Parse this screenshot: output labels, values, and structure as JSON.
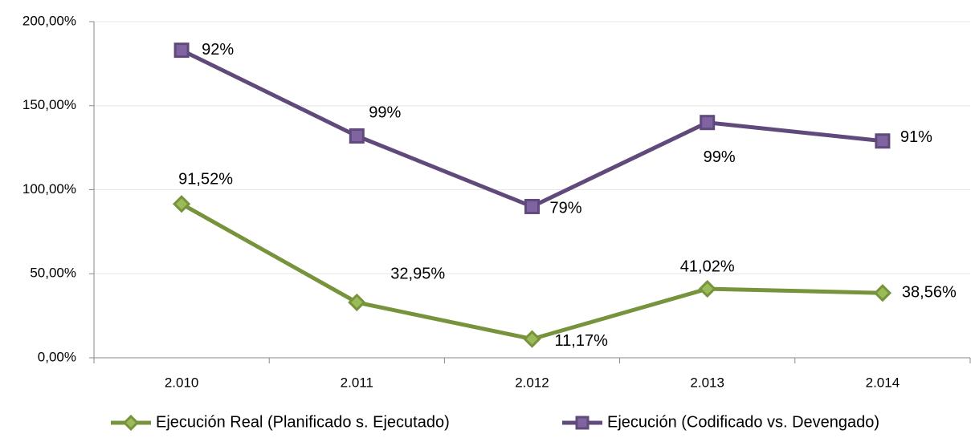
{
  "chart_data": {
    "type": "line",
    "categories": [
      "2.010",
      "2.011",
      "2.012",
      "2.013",
      "2.014"
    ],
    "series": [
      {
        "name": "Ejecución Real (Planificado s. Ejecutado)",
        "color": "#77933c",
        "marker": "diamond",
        "values": [
          91.52,
          32.95,
          11.17,
          41.02,
          38.56
        ],
        "value_labels": [
          "91,52%",
          "32,95%",
          "11,17%",
          "41,02%",
          "38,56%"
        ]
      },
      {
        "name": "Ejecución (Codificado vs. Devengado)",
        "color": "#604a7b",
        "marker": "square",
        "values": [
          183,
          132,
          90,
          140,
          129
        ],
        "point_annotations": [
          "92%",
          "99%",
          "79%",
          "99%",
          "91%"
        ]
      }
    ],
    "ylim": [
      0,
      200
    ],
    "yticks": [
      {
        "value": 0,
        "label": "0,00%"
      },
      {
        "value": 50,
        "label": "50,00%"
      },
      {
        "value": 100,
        "label": "100,00%"
      },
      {
        "value": 150,
        "label": "150,00%"
      },
      {
        "value": 200,
        "label": "200,00%"
      }
    ],
    "grid": true,
    "legend": "bottom"
  }
}
